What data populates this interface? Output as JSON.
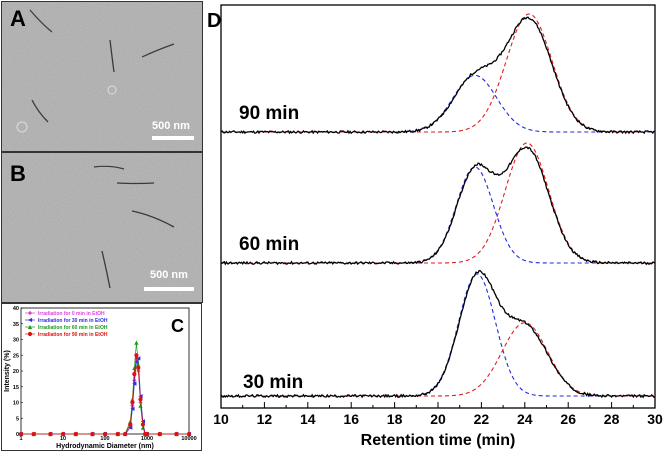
{
  "panels": {
    "a": {
      "letter": "A",
      "scale_label": "500 nm"
    },
    "b": {
      "letter": "B",
      "scale_label": "500 nm"
    },
    "c": {
      "letter": "C"
    },
    "d": {
      "letter": "D"
    }
  },
  "colors": {
    "micrograph_bg": "#a7a7a7",
    "measured": "#000000",
    "fit_blue": "#1f2be0",
    "fit_red": "#e11e1e"
  },
  "chart_data": [
    {
      "type": "scatter",
      "panel": "C",
      "xlabel": "Hydrodynamic Diameter (nm)",
      "ylabel": "Intensity (%)",
      "xscale": "log",
      "xlim": [
        1,
        10000
      ],
      "ylim": [
        0,
        40
      ],
      "x_ticks": [
        "1",
        "10",
        "100",
        "1000",
        "10000"
      ],
      "y_ticks": [
        0,
        5,
        10,
        15,
        20,
        25,
        30,
        35,
        40
      ],
      "legend_position": "top-left",
      "series": [
        {
          "name": "Irradiation for 0 min in EtOH",
          "color": "#e040e0",
          "marker": "diamond",
          "x": [
            1,
            2,
            5,
            10,
            20,
            50,
            100,
            200,
            300,
            400,
            450,
            500,
            560,
            620,
            700,
            800,
            900,
            1000,
            2000,
            5000,
            10000
          ],
          "y": [
            0,
            0,
            0,
            0,
            0,
            0,
            0,
            0,
            0,
            3,
            9,
            17,
            24,
            20,
            10,
            3,
            0,
            0,
            0,
            0,
            0
          ]
        },
        {
          "name": "Irradiation for 30 min in EtOH",
          "color": "#2d2de0",
          "marker": "triangle-left",
          "x": [
            1,
            2,
            5,
            10,
            20,
            50,
            100,
            200,
            300,
            400,
            450,
            500,
            560,
            620,
            700,
            800,
            900,
            1000,
            2000,
            5000,
            10000
          ],
          "y": [
            0,
            0,
            0,
            0,
            0,
            0,
            0,
            0,
            0,
            2,
            8,
            16,
            23,
            24,
            12,
            4,
            0,
            0,
            0,
            0,
            0
          ]
        },
        {
          "name": "Irradiation for 60 min in EtOH",
          "color": "#1a9a1a",
          "marker": "triangle-up",
          "x": [
            1,
            2,
            5,
            10,
            20,
            50,
            100,
            200,
            300,
            400,
            450,
            500,
            560,
            620,
            700,
            800,
            900,
            1000,
            2000,
            5000,
            10000
          ],
          "y": [
            0,
            0,
            0,
            0,
            0,
            0,
            0,
            0,
            0,
            4,
            11,
            21,
            29,
            22,
            9,
            2,
            0,
            0,
            0,
            0,
            0
          ]
        },
        {
          "name": "Irradiation for 90 min in EtOH",
          "color": "#e01010",
          "marker": "circle",
          "x": [
            1,
            2,
            5,
            10,
            20,
            50,
            100,
            200,
            300,
            400,
            450,
            500,
            560,
            620,
            700,
            800,
            900,
            1000,
            2000,
            5000,
            10000
          ],
          "y": [
            0,
            0,
            0,
            0,
            0,
            0,
            0,
            0,
            0,
            3,
            10,
            19,
            25,
            21,
            11,
            3,
            0,
            0,
            0,
            0,
            0
          ]
        }
      ]
    },
    {
      "type": "line",
      "panel": "D",
      "xlabel": "Retention time (min)",
      "ylabel": "",
      "xlim": [
        10,
        30
      ],
      "x_ticks": [
        10,
        12,
        14,
        16,
        18,
        20,
        22,
        24,
        26,
        28,
        30
      ],
      "grid": false,
      "traces": [
        {
          "label": "90 min",
          "peaks": [
            {
              "center": 21.7,
              "height": 0.48,
              "sigma": 1.0,
              "color": "blue"
            },
            {
              "center": 24.2,
              "height": 1.0,
              "sigma": 1.05,
              "color": "red"
            }
          ]
        },
        {
          "label": "60 min",
          "peaks": [
            {
              "center": 21.7,
              "height": 0.8,
              "sigma": 0.85,
              "color": "blue"
            },
            {
              "center": 24.1,
              "height": 1.0,
              "sigma": 1.0,
              "color": "red"
            }
          ]
        },
        {
          "label": "30 min",
          "peaks": [
            {
              "center": 21.8,
              "height": 1.0,
              "sigma": 0.85,
              "color": "blue"
            },
            {
              "center": 24.0,
              "height": 0.6,
              "sigma": 1.05,
              "color": "red"
            }
          ]
        }
      ]
    }
  ]
}
